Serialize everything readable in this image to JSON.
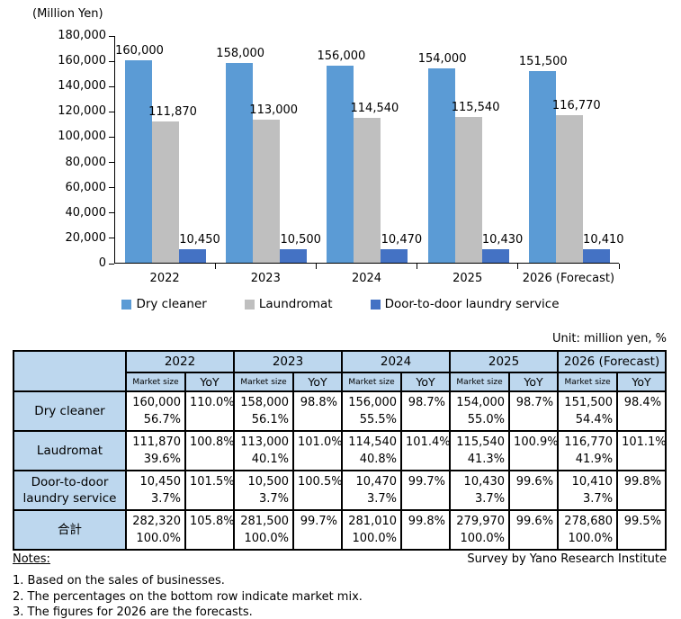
{
  "unit_label": "Unit: million yen, %",
  "survey_credit": "Survey by Yano Research Institute",
  "notes": {
    "heading": "Notes:",
    "items": [
      "1. Based on the sales of businesses.",
      "2. The percentages on the bottom row indicate market mix.",
      "3. The figures for 2026 are the forecasts."
    ]
  },
  "colors": {
    "dry_cleaner": "#5B9BD5",
    "laundromat": "#BFBFBF",
    "door_to_door": "#4472C4",
    "table_header_bg": "#BDD7EE"
  },
  "chart_data": {
    "type": "bar",
    "axis_label": "(Million Yen)",
    "categories": [
      "2022",
      "2023",
      "2024",
      "2025",
      "2026 (Forecast)"
    ],
    "series": [
      {
        "name": "Dry cleaner",
        "color": "#5B9BD5",
        "values": [
          160000,
          158000,
          156000,
          154000,
          151500
        ]
      },
      {
        "name": "Laundromat",
        "color": "#BFBFBF",
        "values": [
          111870,
          113000,
          114540,
          115540,
          116770
        ]
      },
      {
        "name": "Door-to-door laundry service",
        "color": "#4472C4",
        "values": [
          10450,
          10500,
          10470,
          10430,
          10410
        ]
      }
    ],
    "ylim": [
      0,
      180000
    ],
    "ytick_step": 20000,
    "grid": false,
    "data_labels": true,
    "legend_position": "bottom"
  },
  "table": {
    "corner": "",
    "years": [
      "2022",
      "2023",
      "2024",
      "2025",
      "2026 (Forecast)"
    ],
    "sub_headers": [
      "Market size",
      "YoY"
    ],
    "rows": [
      {
        "label": [
          "Dry cleaner"
        ],
        "cells": [
          [
            "160,000",
            "56.7%",
            "110.0%"
          ],
          [
            "158,000",
            "56.1%",
            "98.8%"
          ],
          [
            "156,000",
            "55.5%",
            "98.7%"
          ],
          [
            "154,000",
            "55.0%",
            "98.7%"
          ],
          [
            "151,500",
            "54.4%",
            "98.4%"
          ]
        ]
      },
      {
        "label": [
          "Laudromat"
        ],
        "cells": [
          [
            "111,870",
            "39.6%",
            "100.8%"
          ],
          [
            "113,000",
            "40.1%",
            "101.0%"
          ],
          [
            "114,540",
            "40.8%",
            "101.4%"
          ],
          [
            "115,540",
            "41.3%",
            "100.9%"
          ],
          [
            "116,770",
            "41.9%",
            "101.1%"
          ]
        ]
      },
      {
        "label": [
          "Door-to-door",
          "laundry service"
        ],
        "cells": [
          [
            "10,450",
            "3.7%",
            "101.5%"
          ],
          [
            "10,500",
            "3.7%",
            "100.5%"
          ],
          [
            "10,470",
            "3.7%",
            "99.7%"
          ],
          [
            "10,430",
            "3.7%",
            "99.6%"
          ],
          [
            "10,410",
            "3.7%",
            "99.8%"
          ]
        ]
      },
      {
        "label": [
          "合計"
        ],
        "cells": [
          [
            "282,320",
            "100.0%",
            "105.8%"
          ],
          [
            "281,500",
            "100.0%",
            "99.7%"
          ],
          [
            "281,010",
            "100.0%",
            "99.8%"
          ],
          [
            "279,970",
            "100.0%",
            "99.6%"
          ],
          [
            "278,680",
            "100.0%",
            "99.5%"
          ]
        ]
      }
    ]
  }
}
